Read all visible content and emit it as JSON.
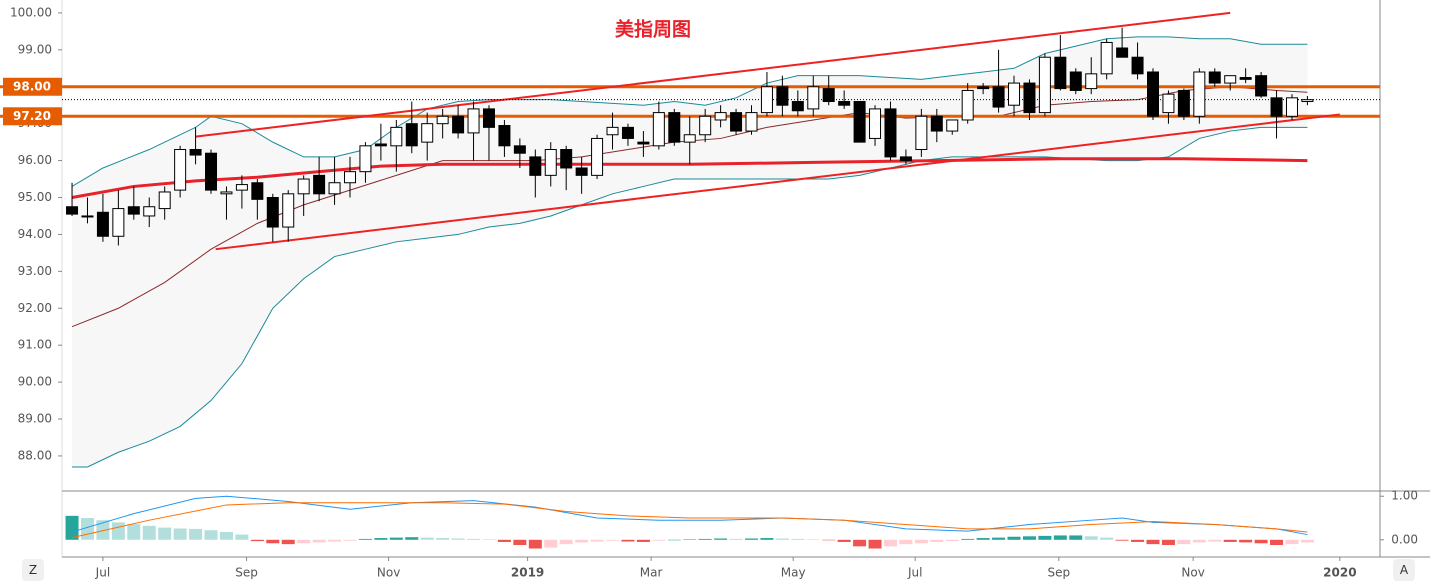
{
  "chart_data": [
    {
      "type": "candlestick",
      "title": "美指周图",
      "title_color": "#e8222a",
      "open": [
        94.75,
        94.5,
        94.6,
        93.95,
        94.75,
        94.5,
        94.7,
        95.2,
        96.3,
        96.2,
        95.1,
        95.2,
        95.4,
        95.0,
        94.2,
        95.1,
        95.6,
        95.1,
        95.4,
        95.7,
        96.45,
        96.4,
        97.0,
        96.5,
        97.0,
        97.2,
        96.75,
        97.4,
        96.95,
        96.4,
        96.1,
        95.6,
        96.3,
        95.8,
        95.6,
        96.7,
        96.9,
        96.5,
        96.4,
        97.3,
        96.5,
        96.7,
        97.1,
        97.3,
        96.8,
        97.3,
        98.0,
        97.6,
        97.4,
        97.95,
        97.6,
        97.6,
        96.6,
        97.4,
        96.1,
        96.3,
        97.2,
        96.8,
        97.1,
        98.0,
        98.0,
        97.5,
        98.1,
        97.3,
        98.8,
        98.4,
        97.95,
        98.35,
        99.05,
        98.8,
        98.4,
        97.3,
        97.9,
        97.2,
        98.4,
        98.1,
        98.25,
        98.3,
        97.7,
        97.2,
        97.6
      ],
      "high": [
        95.4,
        95.0,
        95.1,
        95.2,
        95.3,
        95.0,
        95.3,
        96.4,
        96.9,
        96.3,
        95.3,
        95.6,
        95.5,
        95.1,
        95.2,
        95.6,
        96.1,
        96.1,
        96.1,
        96.5,
        97.0,
        97.1,
        97.6,
        97.3,
        97.4,
        97.5,
        97.6,
        97.5,
        97.1,
        96.6,
        96.3,
        96.5,
        96.4,
        96.1,
        96.7,
        97.3,
        97.0,
        96.8,
        97.6,
        97.4,
        97.2,
        97.4,
        97.5,
        97.4,
        97.5,
        98.4,
        98.3,
        97.9,
        98.3,
        98.3,
        97.9,
        97.6,
        97.5,
        97.6,
        96.3,
        97.4,
        97.4,
        97.1,
        98.1,
        98.1,
        99.0,
        98.3,
        98.2,
        98.9,
        99.4,
        98.5,
        98.8,
        99.3,
        99.6,
        99.2,
        98.5,
        97.9,
        97.95,
        98.5,
        98.5,
        98.3,
        98.5,
        98.4,
        97.9,
        97.8,
        97.75
      ],
      "low": [
        94.5,
        94.3,
        93.8,
        93.7,
        94.4,
        94.2,
        94.4,
        95.0,
        95.9,
        95.1,
        94.4,
        94.7,
        94.4,
        93.8,
        93.8,
        94.5,
        94.9,
        94.8,
        95.0,
        95.4,
        96.0,
        95.7,
        96.2,
        96.0,
        96.6,
        96.6,
        96.0,
        96.0,
        96.1,
        95.8,
        95.0,
        95.3,
        95.2,
        95.1,
        95.5,
        96.3,
        96.4,
        96.1,
        96.3,
        96.4,
        95.9,
        96.5,
        96.9,
        96.7,
        96.7,
        97.2,
        97.2,
        97.2,
        97.2,
        97.5,
        97.4,
        96.5,
        96.4,
        96.0,
        95.9,
        96.1,
        96.5,
        96.7,
        97.0,
        97.8,
        97.3,
        97.2,
        97.1,
        97.2,
        97.9,
        97.8,
        97.8,
        98.2,
        98.9,
        98.2,
        97.1,
        97.0,
        97.1,
        97.0,
        98.0,
        97.9,
        98.1,
        97.7,
        96.6,
        97.1,
        97.5
      ],
      "close": [
        94.55,
        94.5,
        93.95,
        94.7,
        94.55,
        94.75,
        95.15,
        96.3,
        96.15,
        95.2,
        95.15,
        95.35,
        94.95,
        94.2,
        95.1,
        95.5,
        95.1,
        95.4,
        95.7,
        96.4,
        96.4,
        96.9,
        96.4,
        97.0,
        97.2,
        96.75,
        97.4,
        96.9,
        96.4,
        96.2,
        95.6,
        96.3,
        95.8,
        95.6,
        96.6,
        96.9,
        96.6,
        96.45,
        97.3,
        96.5,
        96.7,
        97.2,
        97.3,
        96.8,
        97.3,
        98.0,
        97.5,
        97.35,
        98.0,
        97.6,
        97.5,
        96.5,
        97.4,
        96.1,
        96.0,
        97.2,
        96.8,
        97.1,
        97.9,
        97.95,
        97.45,
        98.1,
        97.3,
        98.8,
        97.95,
        97.9,
        98.35,
        99.2,
        98.8,
        98.35,
        97.2,
        97.8,
        97.2,
        98.4,
        98.1,
        98.3,
        98.2,
        97.75,
        97.2,
        97.7,
        97.65
      ],
      "up_color": "#ffffff",
      "down_color": "#000000",
      "xlim": [
        -0.65,
        84.7
      ],
      "ylim": [
        87.05,
        100.35
      ],
      "yticks": [
        {
          "value": 100,
          "label": "100.00"
        },
        {
          "value": 99,
          "label": "99.00"
        },
        {
          "value": 98,
          "label": "98.00"
        },
        {
          "value": 97,
          "label": "97.00"
        },
        {
          "value": 96,
          "label": "96.00"
        },
        {
          "value": 95,
          "label": "95.00"
        },
        {
          "value": 94,
          "label": "94.00"
        },
        {
          "value": 93,
          "label": "93.00"
        },
        {
          "value": 92,
          "label": "92.00"
        },
        {
          "value": 91,
          "label": "91.00"
        },
        {
          "value": 90,
          "label": "90.00"
        },
        {
          "value": 89,
          "label": "89.00"
        },
        {
          "value": 88,
          "label": "88.00"
        }
      ],
      "hlines": [
        {
          "value": 98,
          "label": "98.00",
          "color": "#e65c00"
        },
        {
          "value": 97.2,
          "label": "97.20",
          "color": "#e65c00"
        }
      ],
      "last_price_line": true,
      "overlays": [
        {
          "color": "#1a8a99",
          "x": [
            0,
            2,
            5,
            8,
            9,
            11,
            13,
            15,
            17,
            19,
            21,
            23,
            25,
            27,
            29,
            31,
            33,
            35,
            37,
            39,
            41,
            43,
            45,
            47,
            49,
            51,
            53,
            55,
            57,
            59,
            61,
            63,
            65,
            67,
            69,
            71,
            73,
            75,
            77,
            80
          ],
          "values": [
            95.3,
            95.8,
            96.3,
            96.9,
            97.2,
            97.0,
            96.5,
            96.1,
            96.1,
            96.3,
            96.9,
            97.4,
            97.6,
            97.65,
            97.65,
            97.65,
            97.6,
            97.55,
            97.5,
            97.6,
            97.5,
            97.7,
            98.1,
            98.3,
            98.3,
            98.3,
            98.25,
            98.2,
            98.3,
            98.4,
            98.5,
            98.9,
            99.1,
            99.3,
            99.35,
            99.35,
            99.3,
            99.3,
            99.15,
            99.15
          ]
        },
        {
          "color": "#1a8a99",
          "x": [
            0,
            1,
            3,
            5,
            7,
            9,
            11,
            13,
            15,
            17,
            19,
            21,
            23,
            25,
            27,
            29,
            31,
            33,
            35,
            37,
            39,
            41,
            43,
            45,
            47,
            49,
            51,
            53,
            55,
            57,
            59,
            61,
            63,
            65,
            67,
            69,
            71,
            73,
            75,
            77,
            80
          ],
          "values": [
            87.7,
            87.7,
            88.1,
            88.4,
            88.8,
            89.5,
            90.5,
            92.0,
            92.8,
            93.4,
            93.6,
            93.8,
            93.9,
            94.0,
            94.2,
            94.3,
            94.5,
            94.8,
            95.1,
            95.3,
            95.5,
            95.5,
            95.5,
            95.5,
            95.5,
            95.5,
            95.6,
            95.8,
            96.0,
            96.1,
            96.1,
            96.1,
            96.1,
            96.05,
            96.0,
            96.0,
            96.1,
            96.6,
            96.8,
            96.9,
            96.9
          ]
        },
        {
          "color": "#8b2a2a",
          "x": [
            0,
            3,
            6,
            9,
            12,
            15,
            18,
            21,
            24,
            27,
            30,
            33,
            36,
            39,
            42,
            45,
            48,
            51,
            54,
            57,
            60,
            63,
            66,
            69,
            72,
            75,
            78,
            80
          ],
          "values": [
            91.5,
            92.0,
            92.7,
            93.6,
            94.3,
            94.8,
            95.2,
            95.6,
            96.0,
            96.0,
            96.0,
            96.1,
            96.3,
            96.5,
            96.6,
            96.9,
            97.1,
            97.3,
            97.15,
            97.2,
            97.2,
            97.5,
            97.6,
            97.65,
            97.9,
            98.0,
            97.9,
            97.85
          ]
        },
        {
          "color": "#e8222a",
          "width": 3,
          "x": [
            0,
            4,
            8,
            12,
            16,
            20,
            24,
            28,
            32,
            40,
            48,
            56,
            64,
            72,
            80
          ],
          "values": [
            95.0,
            95.3,
            95.45,
            95.55,
            95.7,
            95.85,
            95.9,
            95.9,
            95.9,
            95.9,
            95.95,
            96.0,
            96.05,
            96.05,
            96.0
          ]
        }
      ],
      "trendlines": [
        {
          "color": "#ee2222",
          "x": [
            8,
            75
          ],
          "values": [
            96.65,
            100.0
          ]
        },
        {
          "color": "#ee2222",
          "x": [
            9.3,
            82.1
          ],
          "values": [
            93.6,
            97.25
          ]
        }
      ],
      "band_fill": "#f7f7f7"
    },
    {
      "type": "bar",
      "values": [
        0.55,
        0.5,
        0.45,
        0.4,
        0.36,
        0.32,
        0.28,
        0.26,
        0.25,
        0.22,
        0.18,
        0.12,
        -0.03,
        -0.08,
        -0.1,
        -0.08,
        -0.06,
        -0.04,
        -0.02,
        0.02,
        0.04,
        0.05,
        0.06,
        0.05,
        0.04,
        0.03,
        0.02,
        0.01,
        -0.05,
        -0.12,
        -0.2,
        -0.18,
        -0.1,
        -0.06,
        -0.04,
        -0.02,
        -0.04,
        -0.05,
        -0.02,
        0,
        0.01,
        0.02,
        0.03,
        0.02,
        0.03,
        0.04,
        0.03,
        0.02,
        0.01,
        -0.01,
        -0.05,
        -0.15,
        -0.2,
        -0.15,
        -0.1,
        -0.08,
        -0.05,
        -0.03,
        0.02,
        0.04,
        0.05,
        0.07,
        0.08,
        0.09,
        0.1,
        0.1,
        0.08,
        0.05,
        -0.02,
        -0.05,
        -0.1,
        -0.12,
        -0.1,
        -0.06,
        -0.04,
        -0.05,
        -0.06,
        -0.08,
        -0.12,
        -0.1,
        -0.06
      ],
      "colors": {
        "up_rising": "#26a69a",
        "up_falling": "#b2dfdb",
        "down_falling": "#ef5350",
        "down_rising": "#ffcdd2"
      },
      "lines": [
        {
          "color": "#2196f3",
          "x": [
            0,
            4,
            8,
            10,
            14,
            18,
            22,
            26,
            30,
            34,
            38,
            42,
            46,
            50,
            54,
            58,
            62,
            66,
            68,
            70,
            74,
            78,
            80
          ],
          "values": [
            0.18,
            0.6,
            0.95,
            1.0,
            0.88,
            0.7,
            0.85,
            0.9,
            0.75,
            0.5,
            0.45,
            0.45,
            0.5,
            0.45,
            0.25,
            0.2,
            0.35,
            0.45,
            0.5,
            0.4,
            0.35,
            0.25,
            0.12
          ]
        },
        {
          "color": "#ff6d00",
          "x": [
            0,
            5,
            10,
            14,
            18,
            24,
            28,
            32,
            36,
            40,
            46,
            50,
            54,
            58,
            62,
            66,
            70,
            74,
            78,
            80
          ],
          "values": [
            0.05,
            0.45,
            0.8,
            0.85,
            0.85,
            0.85,
            0.82,
            0.65,
            0.55,
            0.5,
            0.5,
            0.45,
            0.35,
            0.25,
            0.25,
            0.35,
            0.42,
            0.35,
            0.25,
            0.18
          ]
        }
      ],
      "xlim": [
        -0.65,
        84.7
      ],
      "y2lim": [
        -0.395,
        1.12
      ],
      "y2ticks": [
        {
          "value": 1,
          "label": "1.00"
        },
        {
          "value": 0,
          "label": "0.00"
        }
      ],
      "xticks": [
        {
          "value": 2.0,
          "label": "Jul"
        },
        {
          "value": 11.3,
          "label": "Sep"
        },
        {
          "value": 20.5,
          "label": "Nov"
        },
        {
          "value": 29.5,
          "label": "2019"
        },
        {
          "value": 37.5,
          "label": "Mar"
        },
        {
          "value": 46.7,
          "label": "May"
        },
        {
          "value": 54.6,
          "label": "Jul"
        },
        {
          "value": 63.9,
          "label": "Sep"
        },
        {
          "value": 72.6,
          "label": "Nov"
        },
        {
          "value": 82.1,
          "label": "2020"
        }
      ]
    }
  ],
  "buttons": [
    "Z",
    "A"
  ]
}
